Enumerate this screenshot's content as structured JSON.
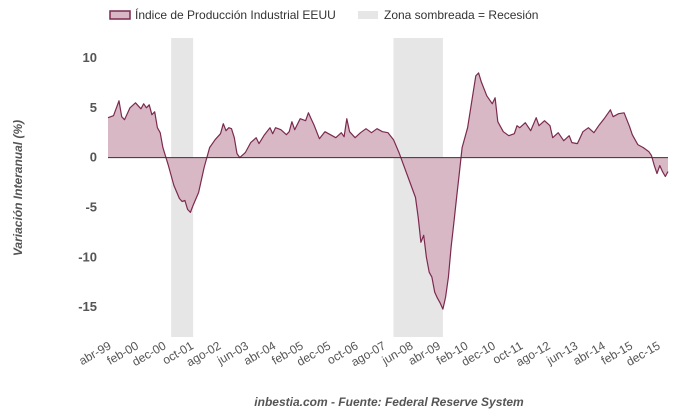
{
  "colors": {
    "series_line": "#7b2a4e",
    "series_fill": "#d9b8c6",
    "recession_fill": "#e6e6e6",
    "zero_line": "#333333",
    "text": "#555555"
  },
  "legend": {
    "series_label": "Índice de Producción Industrial EEUU",
    "recession_label": "Zona sombreada = Recesión",
    "placement": "top-left"
  },
  "source": "inbestia.com - Fuente: Federal Reserve System",
  "chart_data": {
    "type": "area",
    "title": "",
    "xlabel": "",
    "ylabel": "Variación Interanual (%)",
    "ylim": [
      -18,
      12
    ],
    "yticks": [
      10,
      5,
      0,
      -5,
      -10,
      -15
    ],
    "grid": false,
    "x_range": [
      "1999-04",
      "2016-04"
    ],
    "x_ticks": [
      {
        "date": "1999-04",
        "label": "abr-99"
      },
      {
        "date": "2000-02",
        "label": "feb-00"
      },
      {
        "date": "2000-12",
        "label": "dec-00"
      },
      {
        "date": "2001-10",
        "label": "oct-01"
      },
      {
        "date": "2002-08",
        "label": "ago-02"
      },
      {
        "date": "2003-06",
        "label": "jun-03"
      },
      {
        "date": "2004-04",
        "label": "abr-04"
      },
      {
        "date": "2005-02",
        "label": "feb-05"
      },
      {
        "date": "2005-12",
        "label": "dec-05"
      },
      {
        "date": "2006-10",
        "label": "oct-06"
      },
      {
        "date": "2007-08",
        "label": "ago-07"
      },
      {
        "date": "2008-06",
        "label": "jun-08"
      },
      {
        "date": "2009-04",
        "label": "abr-09"
      },
      {
        "date": "2010-02",
        "label": "feb-10"
      },
      {
        "date": "2010-12",
        "label": "dec-10"
      },
      {
        "date": "2011-10",
        "label": "oct-11"
      },
      {
        "date": "2012-08",
        "label": "ago-12"
      },
      {
        "date": "2013-06",
        "label": "jun-13"
      },
      {
        "date": "2014-04",
        "label": "abr-14"
      },
      {
        "date": "2015-02",
        "label": "feb-15"
      },
      {
        "date": "2015-12",
        "label": "dec-15"
      }
    ],
    "recessions": [
      {
        "start": "2001-03",
        "end": "2001-11"
      },
      {
        "start": "2007-12",
        "end": "2009-06"
      }
    ],
    "series": [
      {
        "name": "Índice de Producción Industrial EEUU",
        "points": [
          [
            "1999-04",
            4.0
          ],
          [
            "1999-06",
            4.2
          ],
          [
            "1999-08",
            5.7
          ],
          [
            "1999-09",
            4.1
          ],
          [
            "1999-10",
            3.8
          ],
          [
            "1999-12",
            5.0
          ],
          [
            "2000-02",
            5.5
          ],
          [
            "2000-04",
            4.9
          ],
          [
            "2000-05",
            5.4
          ],
          [
            "2000-06",
            5.0
          ],
          [
            "2000-07",
            5.3
          ],
          [
            "2000-08",
            4.3
          ],
          [
            "2000-09",
            4.6
          ],
          [
            "2000-10",
            3.0
          ],
          [
            "2000-11",
            2.5
          ],
          [
            "2000-12",
            1.0
          ],
          [
            "2001-02",
            -0.8
          ],
          [
            "2001-04",
            -2.8
          ],
          [
            "2001-06",
            -4.1
          ],
          [
            "2001-07",
            -4.4
          ],
          [
            "2001-08",
            -4.3
          ],
          [
            "2001-09",
            -5.2
          ],
          [
            "2001-10",
            -5.5
          ],
          [
            "2001-11",
            -4.8
          ],
          [
            "2002-01",
            -3.5
          ],
          [
            "2002-03",
            -1.0
          ],
          [
            "2002-05",
            1.0
          ],
          [
            "2002-07",
            1.8
          ],
          [
            "2002-09",
            2.4
          ],
          [
            "2002-10",
            3.4
          ],
          [
            "2002-11",
            2.7
          ],
          [
            "2002-12",
            3.0
          ],
          [
            "2003-01",
            2.9
          ],
          [
            "2003-02",
            2.0
          ],
          [
            "2003-03",
            0.4
          ],
          [
            "2003-04",
            0.0
          ],
          [
            "2003-06",
            0.5
          ],
          [
            "2003-08",
            1.5
          ],
          [
            "2003-10",
            2.0
          ],
          [
            "2003-11",
            1.4
          ],
          [
            "2004-01",
            2.3
          ],
          [
            "2004-03",
            3.0
          ],
          [
            "2004-04",
            2.4
          ],
          [
            "2004-05",
            3.0
          ],
          [
            "2004-07",
            2.8
          ],
          [
            "2004-09",
            2.3
          ],
          [
            "2004-10",
            2.6
          ],
          [
            "2004-11",
            3.6
          ],
          [
            "2004-12",
            2.8
          ],
          [
            "2005-02",
            3.9
          ],
          [
            "2005-04",
            3.7
          ],
          [
            "2005-05",
            4.5
          ],
          [
            "2005-06",
            3.9
          ],
          [
            "2005-07",
            3.3
          ],
          [
            "2005-09",
            1.9
          ],
          [
            "2005-11",
            2.6
          ],
          [
            "2006-01",
            2.3
          ],
          [
            "2006-03",
            2.0
          ],
          [
            "2006-05",
            2.5
          ],
          [
            "2006-06",
            2.1
          ],
          [
            "2006-07",
            3.9
          ],
          [
            "2006-08",
            2.6
          ],
          [
            "2006-10",
            2.0
          ],
          [
            "2006-12",
            2.5
          ],
          [
            "2007-02",
            2.9
          ],
          [
            "2007-04",
            2.5
          ],
          [
            "2007-06",
            2.9
          ],
          [
            "2007-08",
            2.6
          ],
          [
            "2007-10",
            2.5
          ],
          [
            "2007-12",
            1.8
          ],
          [
            "2008-02",
            0.5
          ],
          [
            "2008-04",
            -1.0
          ],
          [
            "2008-06",
            -2.5
          ],
          [
            "2008-08",
            -4.0
          ],
          [
            "2008-09",
            -6.0
          ],
          [
            "2008-10",
            -8.5
          ],
          [
            "2008-11",
            -7.8
          ],
          [
            "2008-12",
            -10.0
          ],
          [
            "2009-01",
            -11.5
          ],
          [
            "2009-02",
            -12.0
          ],
          [
            "2009-03",
            -13.5
          ],
          [
            "2009-04",
            -14.1
          ],
          [
            "2009-05",
            -14.6
          ],
          [
            "2009-06",
            -15.2
          ],
          [
            "2009-07",
            -14.0
          ],
          [
            "2009-08",
            -12.0
          ],
          [
            "2009-09",
            -9.0
          ],
          [
            "2009-10",
            -6.5
          ],
          [
            "2009-11",
            -4.0
          ],
          [
            "2009-12",
            -1.5
          ],
          [
            "2010-01",
            1.0
          ],
          [
            "2010-03",
            3.0
          ],
          [
            "2010-05",
            6.5
          ],
          [
            "2010-06",
            8.2
          ],
          [
            "2010-07",
            8.5
          ],
          [
            "2010-08",
            7.6
          ],
          [
            "2010-10",
            6.2
          ],
          [
            "2010-12",
            5.4
          ],
          [
            "2011-01",
            6.0
          ],
          [
            "2011-02",
            3.6
          ],
          [
            "2011-04",
            2.6
          ],
          [
            "2011-06",
            2.2
          ],
          [
            "2011-08",
            2.4
          ],
          [
            "2011-09",
            3.2
          ],
          [
            "2011-10",
            3.0
          ],
          [
            "2011-12",
            3.5
          ],
          [
            "2012-02",
            2.7
          ],
          [
            "2012-04",
            4.0
          ],
          [
            "2012-05",
            3.2
          ],
          [
            "2012-07",
            3.7
          ],
          [
            "2012-09",
            3.2
          ],
          [
            "2012-10",
            2.0
          ],
          [
            "2012-12",
            2.5
          ],
          [
            "2013-02",
            1.7
          ],
          [
            "2013-04",
            2.2
          ],
          [
            "2013-05",
            1.5
          ],
          [
            "2013-07",
            1.4
          ],
          [
            "2013-09",
            2.6
          ],
          [
            "2013-11",
            3.0
          ],
          [
            "2014-01",
            2.5
          ],
          [
            "2014-03",
            3.3
          ],
          [
            "2014-05",
            4.0
          ],
          [
            "2014-07",
            4.8
          ],
          [
            "2014-08",
            4.1
          ],
          [
            "2014-10",
            4.4
          ],
          [
            "2014-12",
            4.5
          ],
          [
            "2015-02",
            3.1
          ],
          [
            "2015-03",
            2.3
          ],
          [
            "2015-05",
            1.3
          ],
          [
            "2015-07",
            1.0
          ],
          [
            "2015-09",
            0.6
          ],
          [
            "2015-10",
            0.2
          ],
          [
            "2015-11",
            -0.8
          ],
          [
            "2015-12",
            -1.6
          ],
          [
            "2016-01",
            -0.8
          ],
          [
            "2016-02",
            -1.4
          ],
          [
            "2016-03",
            -1.9
          ],
          [
            "2016-04",
            -1.4
          ]
        ]
      }
    ]
  }
}
